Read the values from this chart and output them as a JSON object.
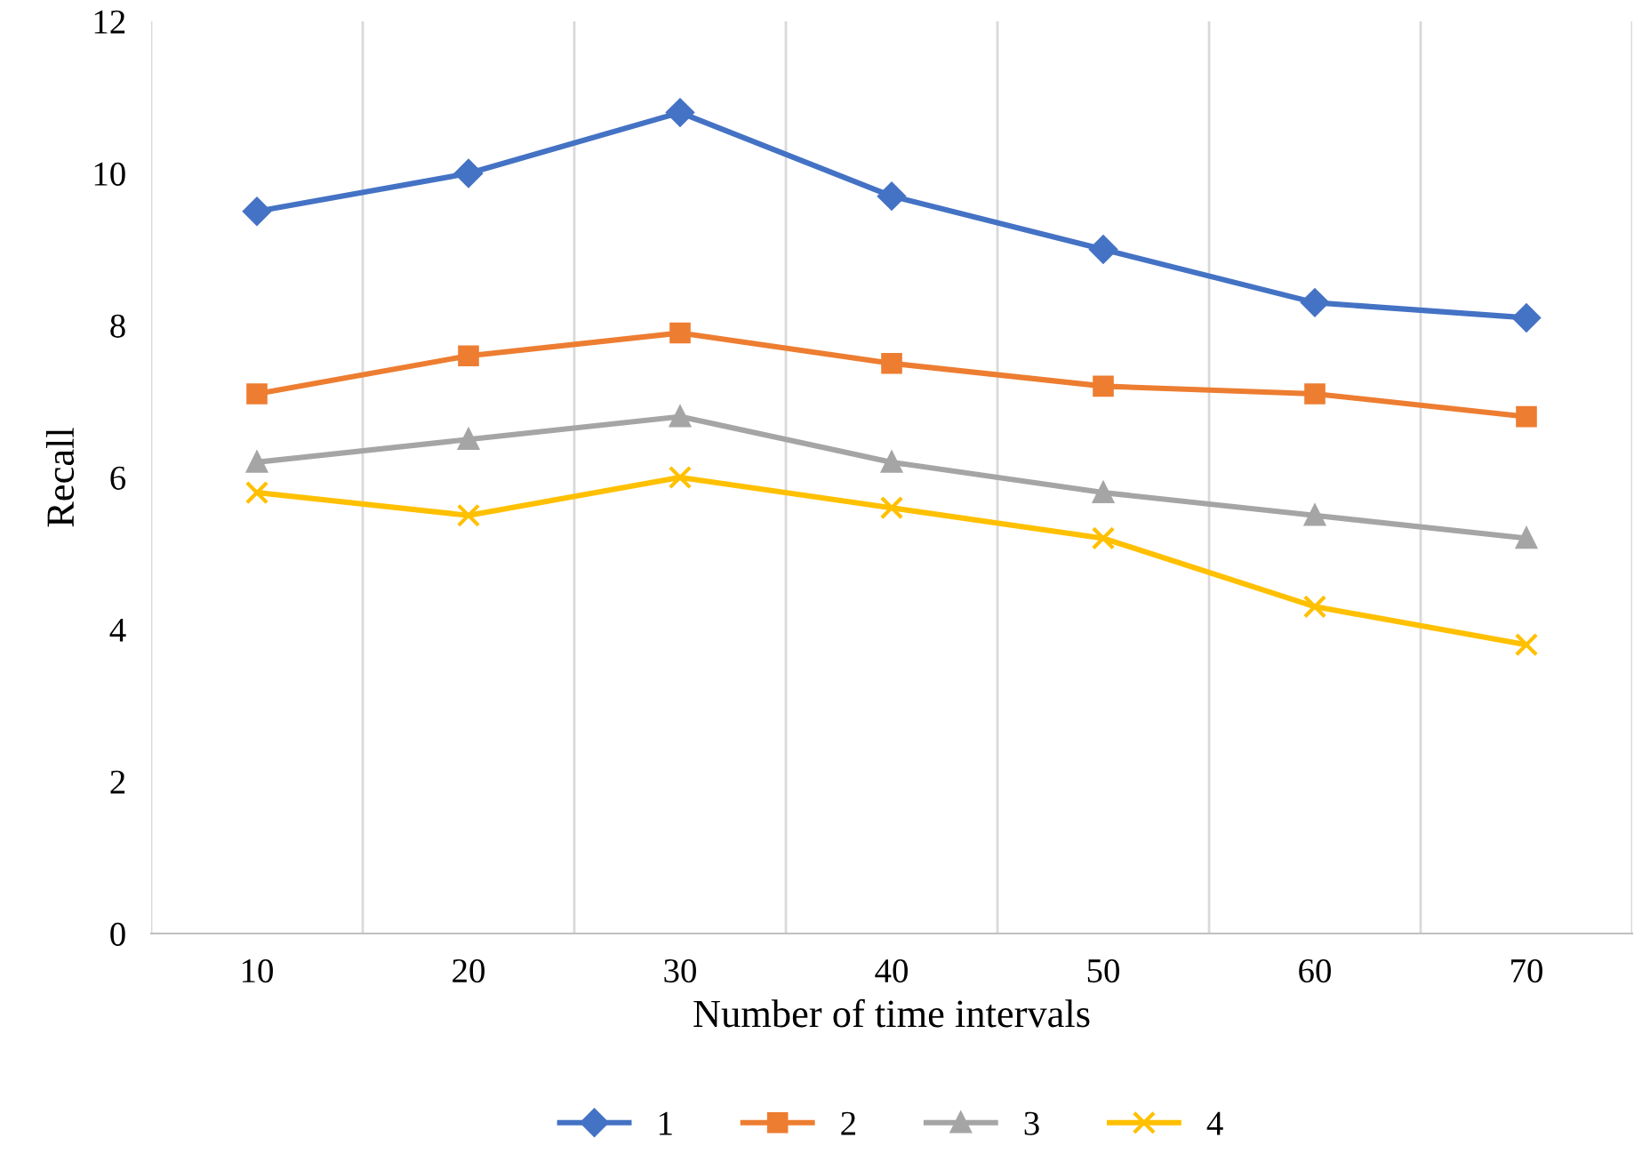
{
  "chart_data": {
    "type": "line",
    "xlabel": "Number of time intervals",
    "ylabel": "Recall",
    "categories": [
      "10",
      "20",
      "30",
      "40",
      "50",
      "60",
      "70"
    ],
    "ylim": [
      0,
      12
    ],
    "yticks": [
      0,
      2,
      4,
      6,
      8,
      10,
      12
    ],
    "grid": "x",
    "legend": "bottom",
    "series": [
      {
        "name": "1",
        "color": "#4472c4",
        "marker": "diamond",
        "values": [
          9.5,
          10.0,
          10.8,
          9.7,
          9.0,
          8.3,
          8.1
        ]
      },
      {
        "name": "2",
        "color": "#ed7d31",
        "marker": "square",
        "values": [
          7.1,
          7.6,
          7.9,
          7.5,
          7.2,
          7.1,
          6.8
        ]
      },
      {
        "name": "3",
        "color": "#a5a5a5",
        "marker": "triangle",
        "values": [
          6.2,
          6.5,
          6.8,
          6.2,
          5.8,
          5.5,
          5.2
        ]
      },
      {
        "name": "4",
        "color": "#ffc000",
        "marker": "cross",
        "values": [
          5.8,
          5.5,
          6.0,
          5.6,
          5.2,
          4.3,
          3.8
        ]
      }
    ]
  }
}
